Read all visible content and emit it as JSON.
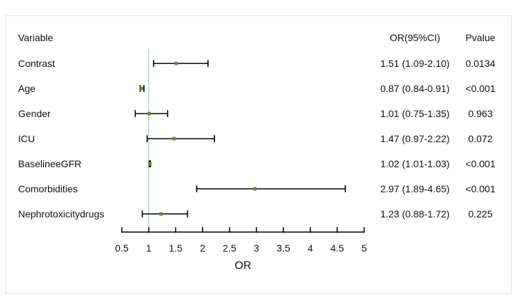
{
  "chart_data": {
    "type": "forest",
    "headers": {
      "variable": "Variable",
      "or_ci": "OR(95%CI)",
      "pvalue": "Pvalue"
    },
    "rows": [
      {
        "variable": "Contrast",
        "or": 1.51,
        "lower": 1.09,
        "upper": 2.1,
        "or_ci_text": "1.51 (1.09-2.10)",
        "p_text": "0.0134"
      },
      {
        "variable": "Age",
        "or": 0.87,
        "lower": 0.84,
        "upper": 0.91,
        "or_ci_text": "0.87 (0.84-0.91)",
        "p_text": "<0.001"
      },
      {
        "variable": "Gender",
        "or": 1.01,
        "lower": 0.75,
        "upper": 1.35,
        "or_ci_text": "1.01 (0.75-1.35)",
        "p_text": "0.963"
      },
      {
        "variable": "ICU",
        "or": 1.47,
        "lower": 0.97,
        "upper": 2.22,
        "or_ci_text": "1.47 (0.97-2.22)",
        "p_text": "0.072"
      },
      {
        "variable": "BaselineeGFR",
        "or": 1.02,
        "lower": 1.01,
        "upper": 1.03,
        "or_ci_text": "1.02 (1.01-1.03)",
        "p_text": "<0.001"
      },
      {
        "variable": "Comorbidities",
        "or": 2.97,
        "lower": 1.89,
        "upper": 4.65,
        "or_ci_text": "2.97 (1.89-4.65)",
        "p_text": "<0.001"
      },
      {
        "variable": "Nephrotoxicitydrugs",
        "or": 1.23,
        "lower": 0.88,
        "upper": 1.72,
        "or_ci_text": "1.23 (0.88-1.72)",
        "p_text": "0.225"
      }
    ],
    "xlabel": "OR",
    "xlim": [
      0.5,
      5
    ],
    "xticks": [
      0.5,
      1,
      1.5,
      2,
      2.5,
      3,
      3.5,
      4,
      4.5,
      5
    ],
    "xtick_labels": [
      "0.5",
      "1",
      "1.5",
      "2",
      "2.5",
      "3",
      "3.5",
      "4",
      "4.5",
      "5"
    ],
    "reference_line": 1,
    "colors": {
      "point": "#5f8f3e",
      "ci_line": "#000000",
      "reference_line": "#9bbfc4",
      "text": "#111111"
    }
  }
}
